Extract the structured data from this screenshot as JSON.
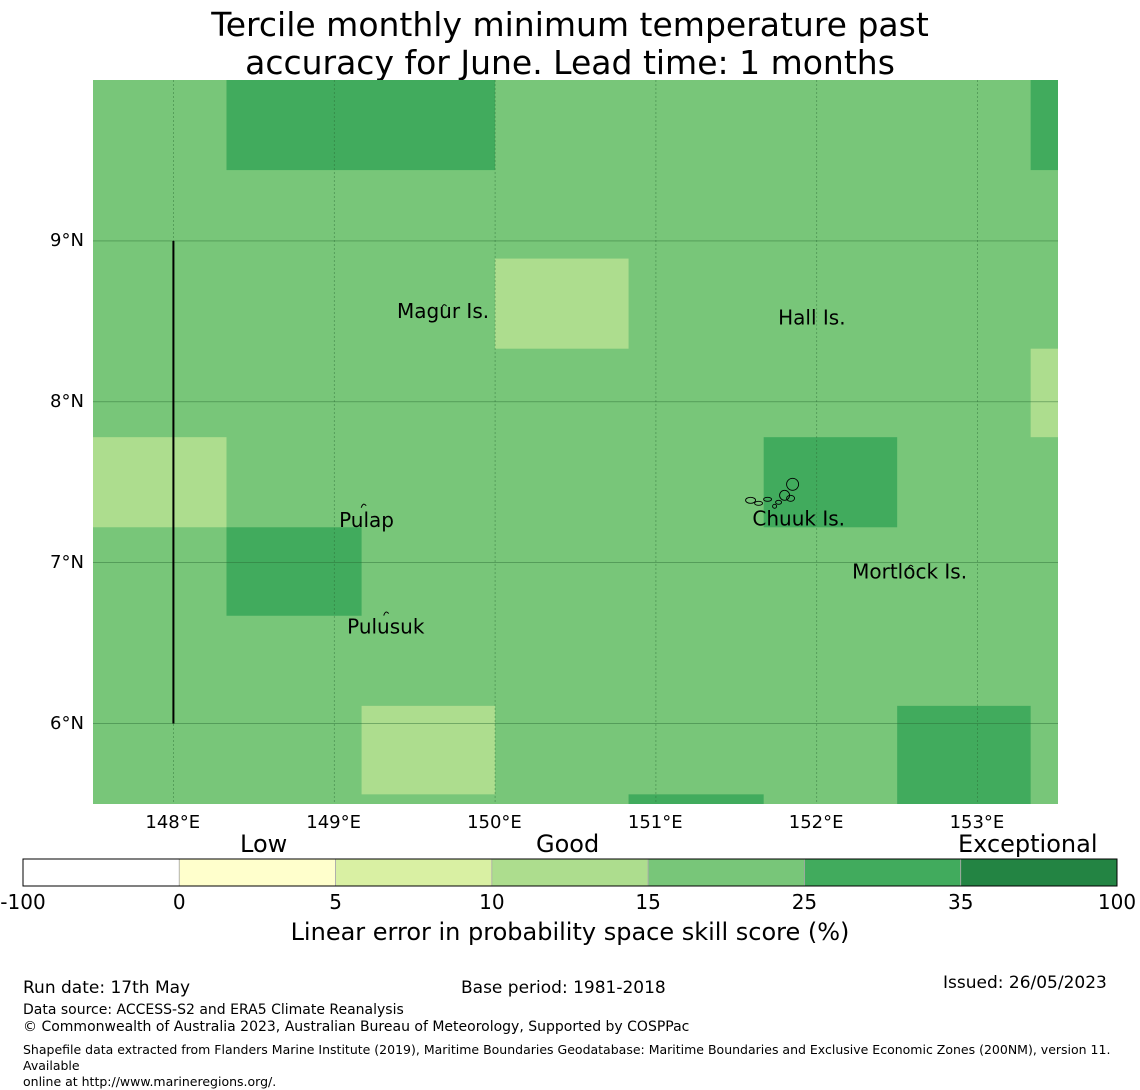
{
  "title_line1": "Tercile monthly minimum temperature past",
  "title_line2": "accuracy for June. Lead time: 1 months",
  "map": {
    "lon_range": [
      147.5,
      153.5
    ],
    "lat_range": [
      5.5,
      10.0
    ],
    "x_ticks": [
      {
        "value": 148,
        "label": "148°E"
      },
      {
        "value": 149,
        "label": "149°E"
      },
      {
        "value": 150,
        "label": "150°E"
      },
      {
        "value": 151,
        "label": "151°E"
      },
      {
        "value": 152,
        "label": "152°E"
      },
      {
        "value": 153,
        "label": "153°E"
      }
    ],
    "y_ticks": [
      {
        "value": 9,
        "label": "9°N"
      },
      {
        "value": 8,
        "label": "8°N"
      },
      {
        "value": 7,
        "label": "7°N"
      },
      {
        "value": 6,
        "label": "6°N"
      }
    ],
    "background_color": "#78c679",
    "cells": [
      {
        "lon": [
          148.33,
          150.0
        ],
        "lat": [
          9.44,
          10.0
        ],
        "color": "#41ab5d"
      },
      {
        "lon": [
          153.33,
          153.5
        ],
        "lat": [
          9.44,
          10.0
        ],
        "color": "#41ab5d"
      },
      {
        "lon": [
          150.0,
          150.83
        ],
        "lat": [
          8.33,
          8.89
        ],
        "color": "#addd8e"
      },
      {
        "lon": [
          153.33,
          153.5
        ],
        "lat": [
          7.78,
          8.33
        ],
        "color": "#addd8e"
      },
      {
        "lon": [
          147.5,
          148.33
        ],
        "lat": [
          7.22,
          7.78
        ],
        "color": "#addd8e"
      },
      {
        "lon": [
          151.67,
          152.5
        ],
        "lat": [
          7.22,
          7.78
        ],
        "color": "#41ab5d"
      },
      {
        "lon": [
          148.33,
          149.17
        ],
        "lat": [
          6.67,
          7.22
        ],
        "color": "#41ab5d"
      },
      {
        "lon": [
          149.17,
          150.0
        ],
        "lat": [
          5.56,
          6.11
        ],
        "color": "#addd8e"
      },
      {
        "lon": [
          152.5,
          153.33
        ],
        "lat": [
          5.5,
          6.11
        ],
        "color": "#41ab5d"
      },
      {
        "lon": [
          150.83,
          151.67
        ],
        "lat": [
          5.5,
          5.56
        ],
        "color": "#41ab5d"
      }
    ],
    "boundary_line": {
      "lon": 148.0,
      "lat": [
        6.0,
        9.0
      ]
    },
    "places": [
      {
        "name": "Magur Is.",
        "lon": 149.39,
        "lat": 8.57
      },
      {
        "name": "Hall Is.",
        "lon": 151.76,
        "lat": 8.53
      },
      {
        "name": "Pulap",
        "lon": 149.03,
        "lat": 7.27
      },
      {
        "name": "Chuuk Is.",
        "lon": 151.6,
        "lat": 7.28
      },
      {
        "name": "Mortlock Is.",
        "lon": 152.22,
        "lat": 6.95
      },
      {
        "name": "Pulusuk",
        "lon": 149.08,
        "lat": 6.61
      }
    ],
    "islands": [
      {
        "lon": 149.68,
        "lat": 8.6
      },
      {
        "lon": 149.18,
        "lat": 7.36
      },
      {
        "lon": 149.32,
        "lat": 6.69
      },
      {
        "lon": 152.58,
        "lat": 6.98
      }
    ]
  },
  "colorbar": {
    "categories": [
      {
        "label": "Low"
      },
      {
        "label": "Good"
      },
      {
        "label": "Exceptional"
      }
    ],
    "bins": [
      {
        "color": "#ffffff"
      },
      {
        "color": "#ffffcc"
      },
      {
        "color": "#d9f0a3"
      },
      {
        "color": "#addd8e"
      },
      {
        "color": "#78c679"
      },
      {
        "color": "#41ab5d"
      },
      {
        "color": "#238443"
      }
    ],
    "ticks": [
      "-100",
      "0",
      "5",
      "10",
      "15",
      "25",
      "35",
      "100"
    ],
    "label": "Linear error in probability space skill score (%)"
  },
  "footer": {
    "run_date": "Run date: 17th May",
    "base_period": "Base period: 1981-2018",
    "issued": "Issued: 26/05/2023",
    "data_source": "Data source: ACCESS-S2 and ERA5 Climate Reanalysis",
    "copyright": "© Commonwealth of Australia 2023, Australian Bureau of Meteorology, Supported by COSPPac",
    "shapefile_line1": "Shapefile data extracted from Flanders Marine Institute (2019), Maritime Boundaries Geodatabase: Maritime Boundaries and Exclusive Economic Zones (200NM), version 11. Available",
    "shapefile_line2": "online at http://www.marineregions.org/."
  }
}
